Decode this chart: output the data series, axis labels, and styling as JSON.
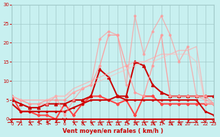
{
  "xlabel": "Vent moyen/en rafales ( km/h )",
  "ylabel": "",
  "xlim": [
    0,
    23
  ],
  "ylim": [
    0,
    30
  ],
  "xticks": [
    0,
    1,
    2,
    3,
    4,
    5,
    6,
    7,
    8,
    9,
    10,
    11,
    12,
    13,
    14,
    15,
    16,
    17,
    18,
    19,
    20,
    21,
    22,
    23
  ],
  "yticks": [
    0,
    5,
    10,
    15,
    20,
    25,
    30
  ],
  "bg_color": "#c8f0f0",
  "grid_color": "#a0c8c8",
  "series": [
    {
      "x": [
        0,
        1,
        2,
        3,
        4,
        5,
        6,
        7,
        8,
        9,
        10,
        11,
        12,
        13,
        14,
        15,
        16,
        17,
        18,
        19,
        20,
        21,
        22,
        23
      ],
      "y": [
        6,
        2,
        2,
        1,
        1,
        0,
        4,
        1,
        4,
        6,
        6,
        5,
        4,
        5,
        1,
        6,
        6,
        4,
        4,
        4,
        4,
        4,
        4,
        4
      ],
      "color": "#ff4444",
      "linewidth": 1.5,
      "marker": "D",
      "markersize": 2,
      "alpha": 1.0
    },
    {
      "x": [
        0,
        1,
        2,
        3,
        4,
        5,
        6,
        7,
        8,
        9,
        10,
        11,
        12,
        13,
        14,
        15,
        16,
        17,
        18,
        19,
        20,
        21,
        22,
        23
      ],
      "y": [
        4,
        2,
        2,
        2,
        2,
        2,
        2,
        3,
        4,
        5,
        5,
        5,
        6,
        5,
        5,
        5,
        5,
        5,
        5,
        5,
        5,
        5,
        2,
        1
      ],
      "color": "#cc0000",
      "linewidth": 1.5,
      "marker": "s",
      "markersize": 2,
      "alpha": 1.0
    },
    {
      "x": [
        0,
        1,
        2,
        3,
        4,
        5,
        6,
        7,
        8,
        9,
        10,
        11,
        12,
        13,
        14,
        15,
        16,
        17,
        18,
        19,
        20,
        21,
        22,
        23
      ],
      "y": [
        5,
        4,
        3,
        3,
        4,
        4,
        4,
        5,
        5,
        6,
        13,
        11,
        6,
        6,
        15,
        14,
        9,
        7,
        6,
        6,
        6,
        6,
        6,
        6
      ],
      "color": "#cc0000",
      "linewidth": 1.5,
      "marker": "^",
      "markersize": 3,
      "alpha": 1.0
    },
    {
      "x": [
        0,
        1,
        2,
        3,
        4,
        5,
        6,
        7,
        8,
        9,
        10,
        11,
        12,
        13,
        14,
        15,
        16,
        17,
        18,
        19,
        20,
        21,
        22,
        23
      ],
      "y": [
        6,
        5,
        4,
        4,
        5,
        5,
        5,
        7,
        8,
        9,
        14,
        22,
        22,
        14,
        7,
        6,
        14,
        22,
        6,
        6,
        6,
        6,
        6,
        4
      ],
      "color": "#ff9999",
      "linewidth": 1.0,
      "marker": "o",
      "markersize": 2,
      "alpha": 0.9
    },
    {
      "x": [
        0,
        1,
        2,
        3,
        4,
        5,
        6,
        7,
        8,
        9,
        10,
        11,
        12,
        13,
        14,
        15,
        16,
        17,
        18,
        19,
        20,
        21,
        22,
        23
      ],
      "y": [
        6,
        5,
        4,
        4,
        4,
        6,
        1,
        5,
        8,
        9,
        21,
        23,
        22,
        9,
        27,
        17,
        23,
        27,
        22,
        15,
        19,
        6,
        5,
        4
      ],
      "color": "#ff9999",
      "linewidth": 1.0,
      "marker": "o",
      "markersize": 2,
      "alpha": 0.7
    },
    {
      "x": [
        0,
        1,
        2,
        3,
        4,
        5,
        6,
        7,
        8,
        9,
        10,
        11,
        12,
        13,
        14,
        15,
        16,
        17,
        18,
        19,
        20,
        21,
        22,
        23
      ],
      "y": [
        6,
        5,
        5,
        5,
        5,
        6,
        6,
        8,
        9,
        10,
        11,
        12,
        13,
        14,
        15,
        15,
        16,
        17,
        17,
        18,
        18,
        19,
        4,
        4
      ],
      "color": "#ffaaaa",
      "linewidth": 1.0,
      "marker": null,
      "markersize": 0,
      "alpha": 0.7
    },
    {
      "x": [
        0,
        1,
        2,
        3,
        4,
        5,
        6,
        7,
        8,
        9,
        10,
        11,
        12,
        13,
        14,
        15,
        16,
        17,
        18,
        19,
        20,
        21,
        22,
        23
      ],
      "y": [
        6,
        5,
        5,
        5,
        5,
        6,
        6,
        7,
        8,
        9,
        10,
        11,
        12,
        13,
        14,
        15,
        15,
        16,
        17,
        17,
        17,
        15,
        4,
        4
      ],
      "color": "#ffbbbb",
      "linewidth": 1.0,
      "marker": null,
      "markersize": 0,
      "alpha": 0.6
    }
  ]
}
